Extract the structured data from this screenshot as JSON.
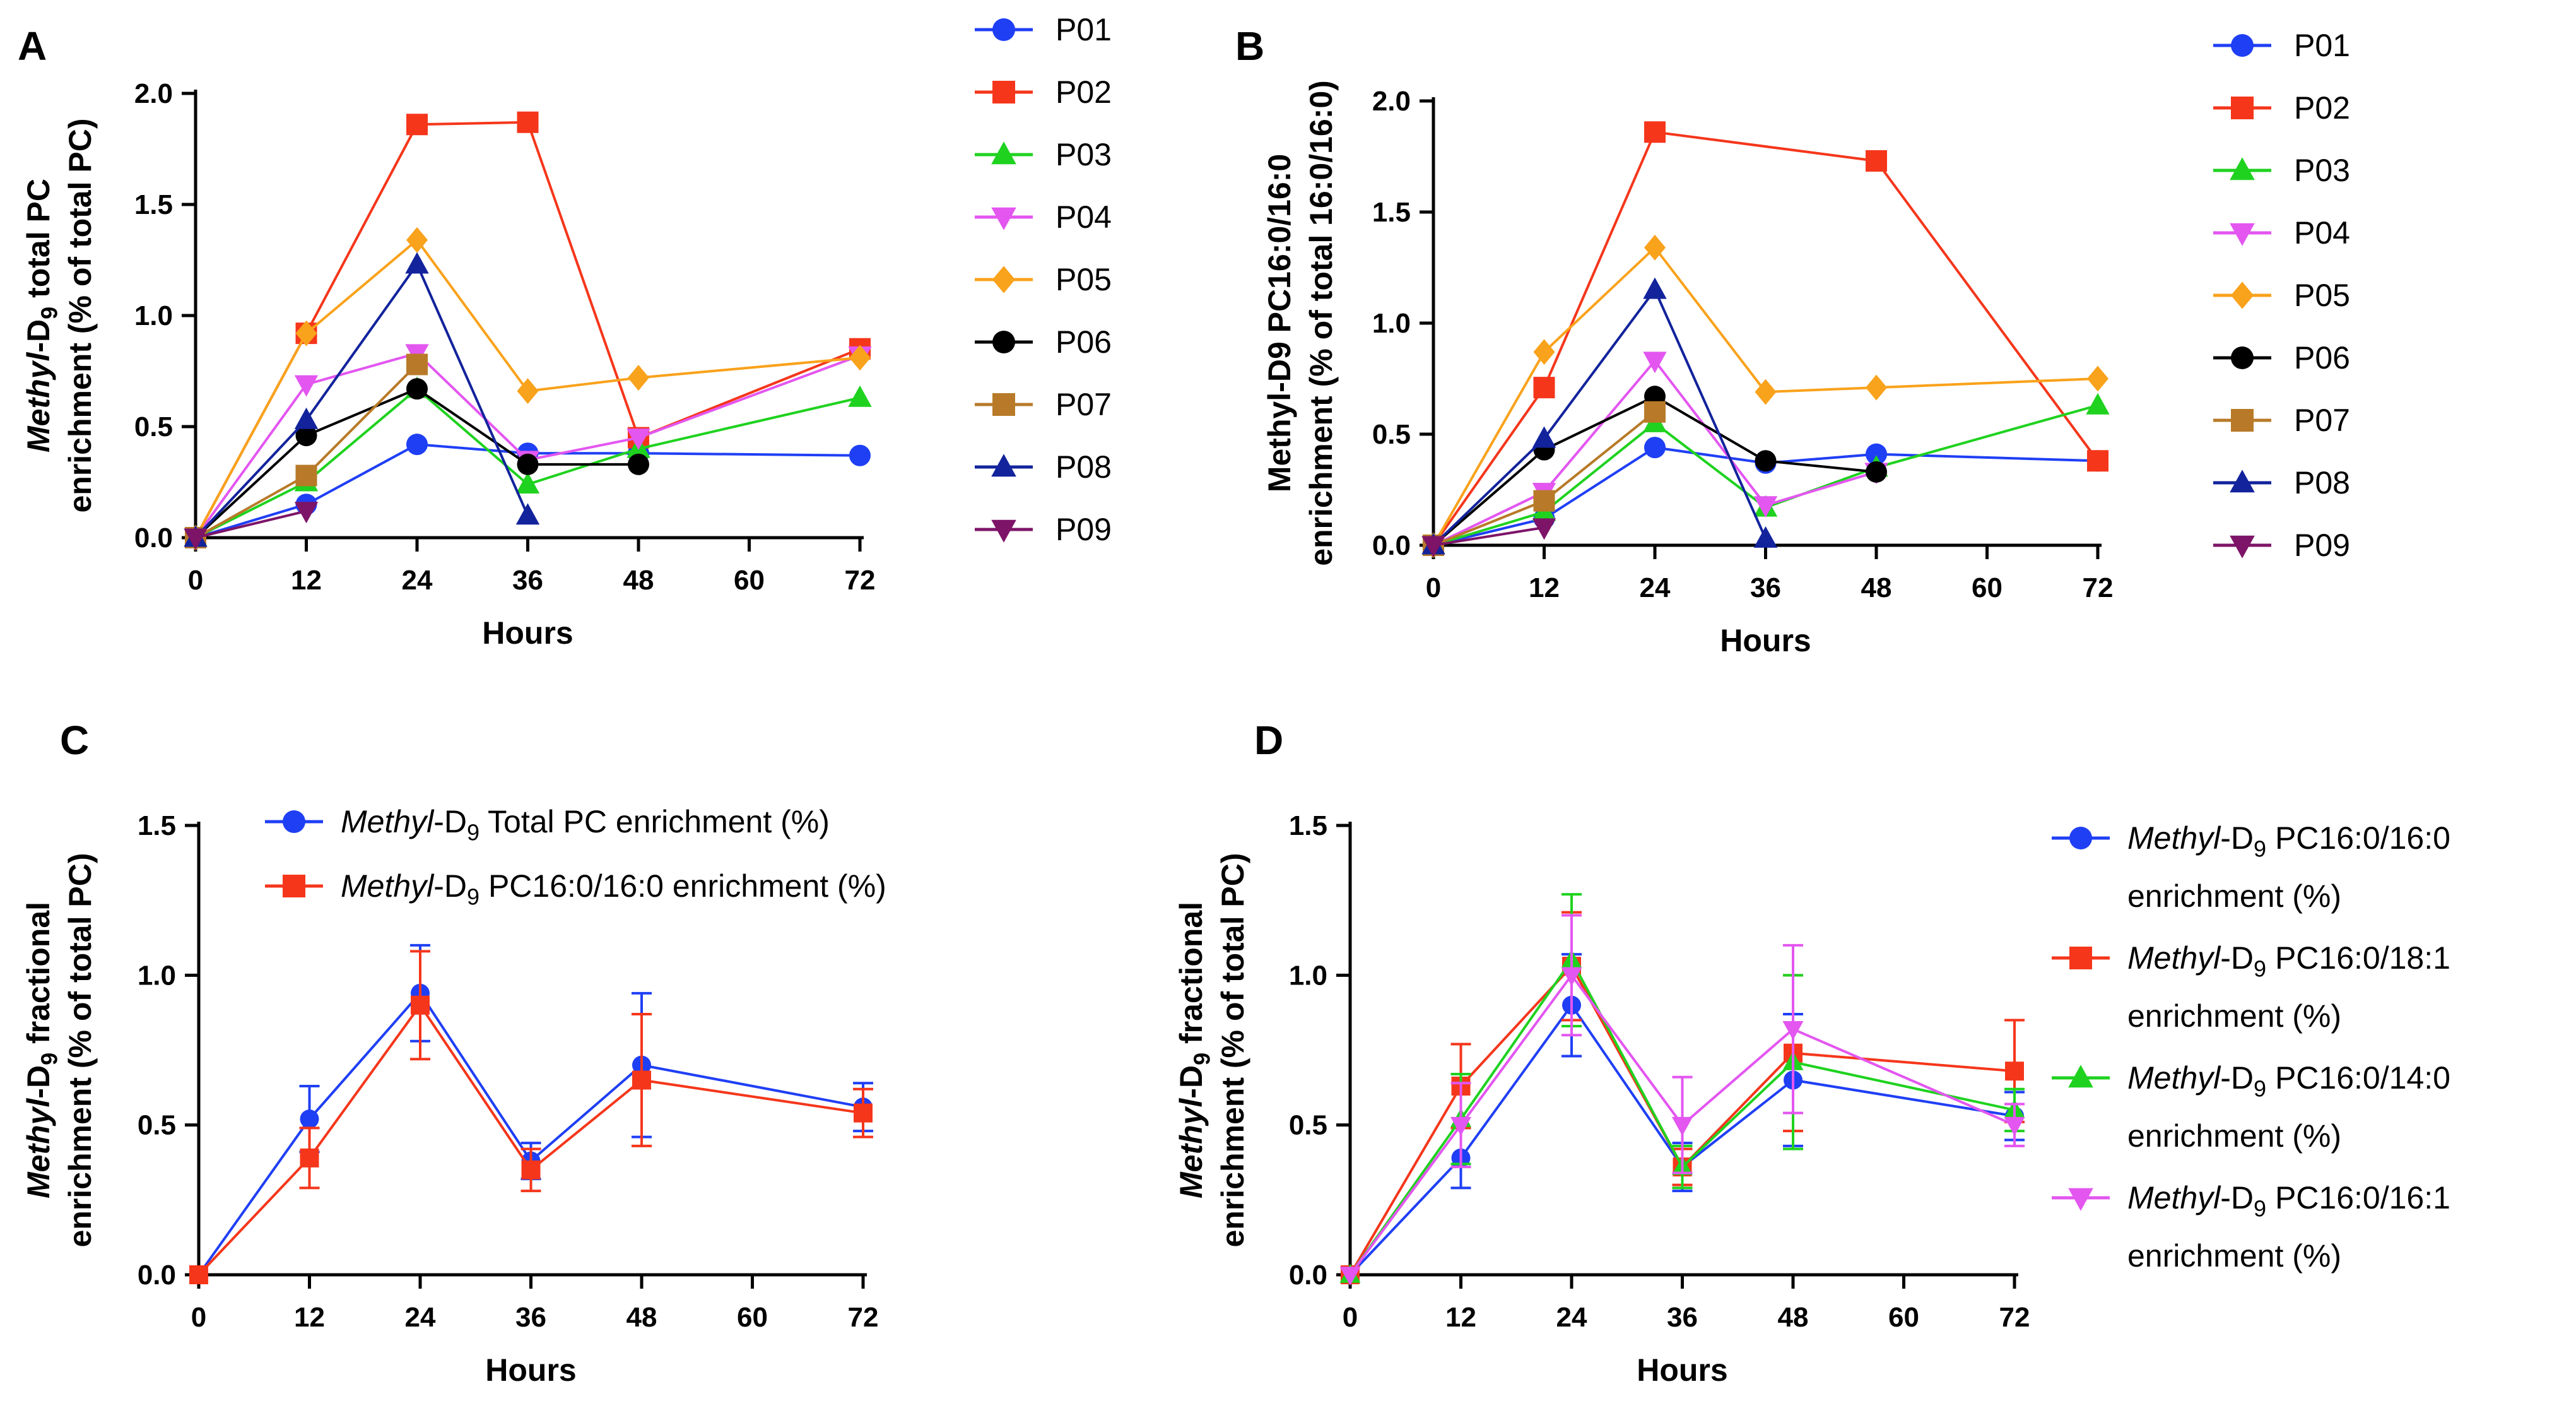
{
  "colors": {
    "P01": "#1f3ff5",
    "P02": "#f5361b",
    "P03": "#1fd21f",
    "P04": "#e356f0",
    "P05": "#f9a21b",
    "P06": "#000000",
    "P07": "#b87a28",
    "P08": "#12239c",
    "P09": "#7d1468",
    "axis": "#000000"
  },
  "chart_data": [
    {
      "panel": "A",
      "type": "line",
      "ylabel_parts": [
        "Methyl",
        "-D",
        "9",
        " total PC",
        "enrichment (% of total PC)"
      ],
      "xlabel": "Hours",
      "xlim": [
        0,
        72
      ],
      "ylim": [
        0,
        2.0
      ],
      "xticks": [
        "0",
        "12",
        "24",
        "36",
        "48",
        "60",
        "72"
      ],
      "yticks": [
        "0.0",
        "0.5",
        "1.0",
        "1.5",
        "2.0"
      ],
      "series": [
        {
          "name": "P01",
          "marker": "circle",
          "x": [
            0,
            12,
            24,
            36,
            48,
            72
          ],
          "values": [
            0.0,
            0.15,
            0.42,
            0.38,
            0.38,
            0.37
          ]
        },
        {
          "name": "P02",
          "marker": "square",
          "x": [
            0,
            12,
            24,
            36,
            48,
            72
          ],
          "values": [
            0.0,
            0.92,
            1.86,
            1.87,
            0.45,
            0.85
          ]
        },
        {
          "name": "P03",
          "marker": "triangle",
          "x": [
            0,
            12,
            24,
            36,
            48,
            72
          ],
          "values": [
            0.0,
            0.25,
            0.67,
            0.24,
            0.4,
            0.63
          ]
        },
        {
          "name": "P04",
          "marker": "triangle-down",
          "x": [
            0,
            12,
            24,
            36,
            48,
            72
          ],
          "values": [
            0.0,
            0.69,
            0.83,
            0.35,
            0.45,
            0.82
          ]
        },
        {
          "name": "P05",
          "marker": "diamond",
          "x": [
            0,
            12,
            24,
            36,
            48,
            72
          ],
          "values": [
            0.0,
            0.92,
            1.34,
            0.66,
            0.72,
            0.81
          ]
        },
        {
          "name": "P06",
          "marker": "circle",
          "x": [
            0,
            12,
            24,
            36,
            48
          ],
          "values": [
            0.0,
            0.46,
            0.67,
            0.33,
            0.33
          ]
        },
        {
          "name": "P07",
          "marker": "square",
          "x": [
            0,
            12,
            24
          ],
          "values": [
            0.0,
            0.28,
            0.78
          ]
        },
        {
          "name": "P08",
          "marker": "triangle",
          "x": [
            0,
            12,
            24,
            36
          ],
          "values": [
            0.0,
            0.53,
            1.23,
            0.1
          ]
        },
        {
          "name": "P09",
          "marker": "triangle-down",
          "x": [
            0,
            12
          ],
          "values": [
            0.0,
            0.12
          ]
        }
      ]
    },
    {
      "panel": "B",
      "type": "line",
      "ylabel_parts": [
        "Methyl-D9 PC16:0/16:0",
        "enrichment (% of total 16:0/16:0)"
      ],
      "xlabel": "Hours",
      "xlim": [
        0,
        72
      ],
      "ylim": [
        0,
        2.0
      ],
      "xticks": [
        "0",
        "12",
        "24",
        "36",
        "48",
        "60",
        "72"
      ],
      "yticks": [
        "0.0",
        "0.5",
        "1.0",
        "1.5",
        "2.0"
      ],
      "series": [
        {
          "name": "P01",
          "marker": "circle",
          "x": [
            0,
            12,
            24,
            36,
            48,
            72
          ],
          "values": [
            0.0,
            0.12,
            0.44,
            0.37,
            0.41,
            0.38
          ]
        },
        {
          "name": "P02",
          "marker": "square",
          "x": [
            0,
            12,
            24,
            48,
            72
          ],
          "values": [
            0.0,
            0.71,
            1.86,
            1.73,
            0.38
          ]
        },
        {
          "name": "P03",
          "marker": "triangle",
          "x": [
            0,
            12,
            24,
            36,
            48,
            72
          ],
          "values": [
            0.0,
            0.15,
            0.55,
            0.17,
            0.35,
            0.63
          ]
        },
        {
          "name": "P04",
          "marker": "triangle-down",
          "x": [
            0,
            12,
            24,
            36,
            48
          ],
          "values": [
            0.0,
            0.24,
            0.83,
            0.18,
            0.33
          ]
        },
        {
          "name": "P05",
          "marker": "diamond",
          "x": [
            0,
            12,
            24,
            36,
            48,
            72
          ],
          "values": [
            0.0,
            0.87,
            1.34,
            0.69,
            0.71,
            0.75
          ]
        },
        {
          "name": "P06",
          "marker": "circle",
          "x": [
            0,
            12,
            24,
            36,
            48
          ],
          "values": [
            0.0,
            0.43,
            0.67,
            0.38,
            0.33
          ]
        },
        {
          "name": "P07",
          "marker": "square",
          "x": [
            0,
            12,
            24
          ],
          "values": [
            0.0,
            0.2,
            0.6
          ]
        },
        {
          "name": "P08",
          "marker": "triangle",
          "x": [
            0,
            12,
            24,
            36
          ],
          "values": [
            0.0,
            0.48,
            1.15,
            0.03
          ]
        },
        {
          "name": "P09",
          "marker": "triangle-down",
          "x": [
            0,
            12
          ],
          "values": [
            0.0,
            0.08
          ]
        }
      ]
    },
    {
      "panel": "C",
      "type": "line",
      "ylabel_parts": [
        "Methyl",
        "-D",
        "9",
        " fractional",
        "enrichment (% of total PC)"
      ],
      "xlabel": "Hours",
      "xlim": [
        0,
        72
      ],
      "ylim": [
        0,
        1.5
      ],
      "xticks": [
        "0",
        "12",
        "24",
        "36",
        "48",
        "60",
        "72"
      ],
      "yticks": [
        "0.0",
        "0.5",
        "1.0",
        "1.5"
      ],
      "series": [
        {
          "name": "Methyl-D9 Total PC enrichment (%)",
          "label_parts": [
            "Methyl",
            "-D",
            "9",
            " Total PC enrichment (%)"
          ],
          "color": "#1f3ff5",
          "marker": "circle",
          "x": [
            0,
            12,
            24,
            36,
            48,
            72
          ],
          "values": [
            0.0,
            0.52,
            0.94,
            0.38,
            0.7,
            0.56
          ],
          "error": [
            0.0,
            0.11,
            0.16,
            0.06,
            0.24,
            0.08
          ]
        },
        {
          "name": "Methyl-D9 PC16:0/16:0 enrichment (%)",
          "label_parts": [
            "Methyl",
            "-D",
            "9",
            " PC16:0/16:0 enrichment (%)"
          ],
          "color": "#f5361b",
          "marker": "square",
          "x": [
            0,
            12,
            24,
            36,
            48,
            72
          ],
          "values": [
            0.0,
            0.39,
            0.9,
            0.35,
            0.65,
            0.54
          ],
          "error": [
            0.0,
            0.1,
            0.18,
            0.07,
            0.22,
            0.08
          ]
        }
      ]
    },
    {
      "panel": "D",
      "type": "line",
      "ylabel_parts": [
        "Methyl",
        "-D",
        "9",
        " fractional",
        "enrichment (% of total PC)"
      ],
      "xlabel": "Hours",
      "xlim": [
        0,
        72
      ],
      "ylim": [
        0,
        1.5
      ],
      "xticks": [
        "0",
        "12",
        "24",
        "36",
        "48",
        "60",
        "72"
      ],
      "yticks": [
        "0.0",
        "0.5",
        "1.0",
        "1.5"
      ],
      "series": [
        {
          "name": "Methyl-D9 PC16:0/16:0 enrichment (%)",
          "label_parts": [
            "Methyl",
            "-D",
            "9",
            " PC16:0/16:0",
            "enrichment (%)"
          ],
          "color": "#1f3ff5",
          "marker": "circle",
          "x": [
            0,
            12,
            24,
            36,
            48,
            72
          ],
          "values": [
            0.0,
            0.39,
            0.9,
            0.36,
            0.65,
            0.53
          ],
          "error": [
            0.0,
            0.1,
            0.17,
            0.08,
            0.22,
            0.08
          ]
        },
        {
          "name": "Methyl-D9 PC16:0/18:1 enrichment (%)",
          "label_parts": [
            "Methyl",
            "-D",
            "9",
            " PC16:0/18:1",
            "enrichment (%)"
          ],
          "color": "#f5361b",
          "marker": "square",
          "x": [
            0,
            12,
            24,
            36,
            48,
            72
          ],
          "values": [
            0.0,
            0.63,
            1.03,
            0.36,
            0.74,
            0.68
          ],
          "error": [
            0.0,
            0.14,
            0.18,
            0.06,
            0.26,
            0.17
          ]
        },
        {
          "name": "Methyl-D9 PC16:0/14:0 enrichment (%)",
          "label_parts": [
            "Methyl",
            "-D",
            "9",
            " PC16:0/14:0",
            "enrichment (%)"
          ],
          "color": "#1fd21f",
          "marker": "triangle",
          "x": [
            0,
            12,
            24,
            36,
            48,
            72
          ],
          "values": [
            0.0,
            0.52,
            1.05,
            0.36,
            0.71,
            0.55
          ],
          "error": [
            0.0,
            0.15,
            0.22,
            0.07,
            0.29,
            0.07
          ]
        },
        {
          "name": "Methyl-D9 PC16:0/16:1 enrichment (%)",
          "label_parts": [
            "Methyl",
            "-D",
            "9",
            " PC16:0/16:1",
            "enrichment (%)"
          ],
          "color": "#e356f0",
          "marker": "triangle-down",
          "x": [
            0,
            12,
            24,
            36,
            48,
            72
          ],
          "values": [
            0.0,
            0.5,
            1.0,
            0.5,
            0.82,
            0.5
          ],
          "error": [
            0.0,
            0.14,
            0.2,
            0.16,
            0.28,
            0.07
          ]
        }
      ]
    }
  ]
}
